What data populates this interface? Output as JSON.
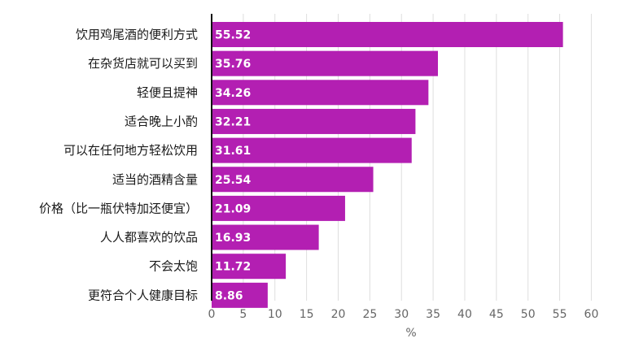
{
  "chart_data": {
    "type": "bar",
    "orientation": "horizontal",
    "categories": [
      "饮用鸡尾酒的便利方式",
      "在杂货店就可以买到",
      "轻便且提神",
      "适合晚上小酌",
      "可以在任何地方轻松饮用",
      "适当的酒精含量",
      "价格（比一瓶伏特加还便宜）",
      "人人都喜欢的饮品",
      "不会太饱",
      "更符合个人健康目标"
    ],
    "values": [
      55.52,
      35.76,
      34.26,
      32.21,
      31.61,
      25.54,
      21.09,
      16.93,
      11.72,
      8.86
    ],
    "data_labels": [
      "55.52",
      "35.76",
      "34.26",
      "32.21",
      "31.61",
      "25.54",
      "21.09",
      "16.93",
      "11.72",
      "8.86"
    ],
    "x_ticks": [
      0,
      5,
      10,
      15,
      20,
      25,
      30,
      35,
      40,
      45,
      50,
      55,
      60
    ],
    "x_tick_labels": [
      "0",
      "5",
      "10",
      "15",
      "20",
      "25",
      "30",
      "35",
      "40",
      "45",
      "50",
      "55",
      "60"
    ],
    "xlim": [
      0,
      62
    ],
    "xlabel": "%",
    "ylabel": "",
    "title": "",
    "grid": true,
    "legend": "none"
  },
  "colors": {
    "bar": "#b31fb2",
    "grid": "#dedede",
    "axis": "#111111",
    "category_text": "#1a1a1a",
    "tick_text": "#666666",
    "value_text": "#ffffff",
    "background": "#ffffff"
  }
}
